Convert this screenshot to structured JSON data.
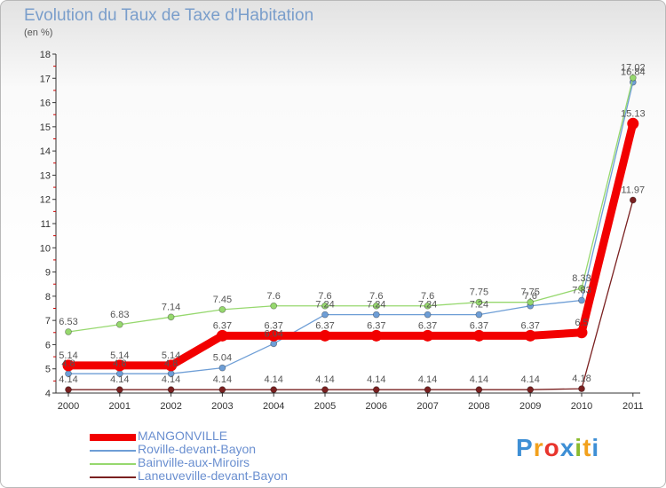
{
  "title": "Evolution du Taux de Taxe d'Habitation",
  "subtitle": "(en %)",
  "logo": {
    "text": "Proxiti",
    "letter_colors": [
      "#3e8fd5",
      "#f2a11d",
      "#e8352d",
      "#3e8fd5",
      "#8bbb2e",
      "#f2a11d",
      "#3e8fd5"
    ]
  },
  "chart_data": {
    "type": "line",
    "title": "Evolution du Taux de Taxe d'Habitation",
    "ylabel": "(en %)",
    "xlabel": "",
    "x": [
      "2000",
      "2001",
      "2002",
      "2003",
      "2004",
      "2005",
      "2006",
      "2007",
      "2008",
      "2009",
      "2010",
      "2011"
    ],
    "ylim": [
      4,
      18
    ],
    "yticks": [
      4,
      5,
      6,
      7,
      8,
      9,
      10,
      11,
      12,
      13,
      14,
      15,
      16,
      17,
      18
    ],
    "grid": false,
    "legend_position": "bottom-left",
    "series": [
      {
        "name": "MANGONVILLE",
        "color": "#f20000",
        "values": [
          5.14,
          5.14,
          5.14,
          6.37,
          6.37,
          6.37,
          6.37,
          6.37,
          6.37,
          6.37,
          6.5,
          15.13
        ],
        "labels": [
          "5.14",
          "5.14",
          "5.14",
          "6.37",
          "6.37",
          "6.37",
          "6.37",
          "6.37",
          "6.37",
          "6.37",
          "6.5",
          "15.13"
        ]
      },
      {
        "name": "Roville-devant-Bayon",
        "color": "#6e9ed6",
        "values": [
          4.8,
          4.8,
          4.8,
          5.04,
          6.04,
          7.24,
          7.24,
          7.24,
          7.24,
          7.6,
          7.83,
          16.84
        ],
        "labels": [
          "4.8",
          "4.8",
          "4.8",
          "5.04",
          "6.04",
          "7.24",
          "7.24",
          "7.24",
          "7.24",
          "7.6",
          "7.83",
          "16.84"
        ]
      },
      {
        "name": "Bainville-aux-Miroirs",
        "color": "#96d86e",
        "values": [
          6.53,
          6.83,
          7.14,
          7.45,
          7.6,
          7.6,
          7.6,
          7.6,
          7.75,
          7.75,
          8.33,
          17.02
        ],
        "labels": [
          "6.53",
          "6.83",
          "7.14",
          "7.45",
          "7.6",
          "7.6",
          "7.6",
          "7.6",
          "7.75",
          "7.75",
          "8.33",
          "17.02"
        ]
      },
      {
        "name": "Laneuveville-devant-Bayon",
        "color": "#7a2020",
        "values": [
          4.14,
          4.14,
          4.14,
          4.14,
          4.14,
          4.14,
          4.14,
          4.14,
          4.14,
          4.14,
          4.18,
          11.97
        ],
        "labels": [
          "4.14",
          "4.14",
          "4.14",
          "4.14",
          "4.14",
          "4.14",
          "4.14",
          "4.14",
          "4.14",
          "4.14",
          "4.18",
          "11.97"
        ]
      }
    ]
  }
}
